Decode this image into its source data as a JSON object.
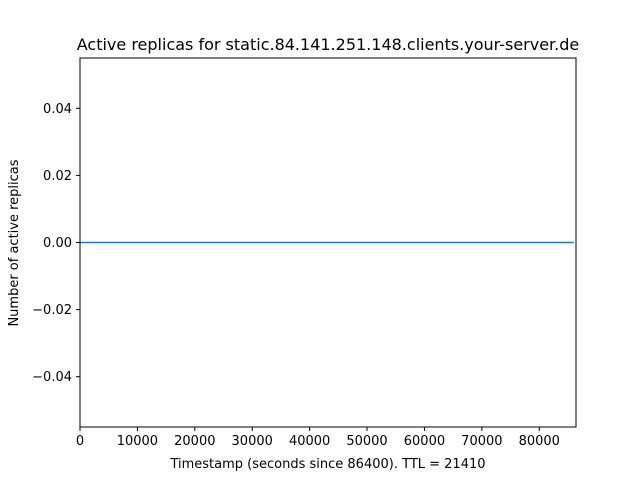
{
  "chart_data": {
    "type": "line",
    "title": "Active replicas for static.84.141.251.148.clients.your-server.de",
    "xlabel": "Timestamp (seconds since 86400). TTL = 21410",
    "ylabel": "Number of active replicas",
    "xlim": [
      0,
      86400
    ],
    "ylim": [
      -0.055,
      0.055
    ],
    "x_ticks": [
      0,
      10000,
      20000,
      30000,
      40000,
      50000,
      60000,
      70000,
      80000
    ],
    "x_tick_labels": [
      "0",
      "10000",
      "20000",
      "30000",
      "40000",
      "50000",
      "60000",
      "70000",
      "80000"
    ],
    "y_ticks": [
      0.04,
      0.02,
      0.0,
      -0.02,
      -0.04
    ],
    "y_tick_labels": [
      "0.04",
      "0.02",
      "0.00",
      "−0.02",
      "−0.04"
    ],
    "grid": false,
    "series": [
      {
        "color": "#1f77b4",
        "x": [
          0,
          86000
        ],
        "y": [
          0,
          0
        ]
      }
    ]
  }
}
